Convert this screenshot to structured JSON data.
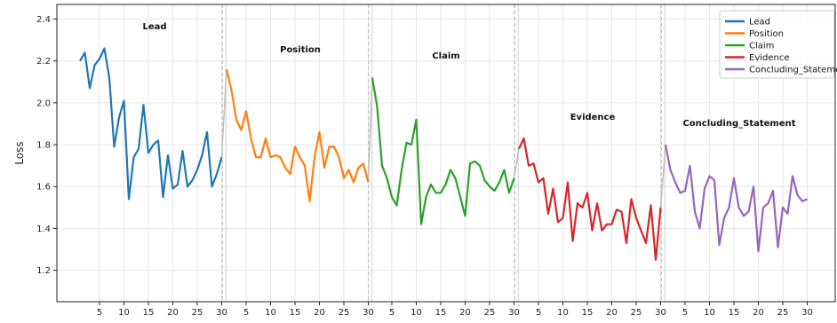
{
  "chart_data": {
    "type": "line",
    "ylabel": "Loss",
    "ylim": [
      1.05,
      2.47
    ],
    "yticks": [
      1.2,
      1.4,
      1.6,
      1.8,
      2.0,
      2.2,
      2.4
    ],
    "segment_xticks": [
      5,
      10,
      15,
      20,
      25,
      30
    ],
    "grid": true,
    "legend_position": "top-right",
    "colors": {
      "Lead": "#1f77b4",
      "Position": "#ff7f0e",
      "Claim": "#2ca02c",
      "Evidence": "#d62728",
      "Concluding_Statement": "#9467bd"
    },
    "segment_labels": [
      "Lead",
      "Position",
      "Claim",
      "Evidence",
      "Concluding_Statement"
    ],
    "series": [
      {
        "name": "Lead",
        "x": [
          1,
          2,
          3,
          4,
          5,
          6,
          7,
          8,
          9,
          10,
          11,
          12,
          13,
          14,
          15,
          16,
          17,
          18,
          19,
          20,
          21,
          22,
          23,
          24,
          25,
          26,
          27,
          28,
          29,
          30
        ],
        "values": [
          2.2,
          2.24,
          2.07,
          2.18,
          2.21,
          2.26,
          2.12,
          1.79,
          1.93,
          2.01,
          1.54,
          1.74,
          1.78,
          1.99,
          1.76,
          1.8,
          1.82,
          1.55,
          1.75,
          1.59,
          1.61,
          1.77,
          1.6,
          1.63,
          1.68,
          1.75,
          1.86,
          1.6,
          1.66,
          1.74
        ]
      },
      {
        "name": "Position",
        "x": [
          1,
          2,
          3,
          4,
          5,
          6,
          7,
          8,
          9,
          10,
          11,
          12,
          13,
          14,
          15,
          16,
          17,
          18,
          19,
          20,
          21,
          22,
          23,
          24,
          25,
          26,
          27,
          28,
          29,
          30
        ],
        "values": [
          2.16,
          2.06,
          1.92,
          1.87,
          1.96,
          1.83,
          1.74,
          1.74,
          1.83,
          1.74,
          1.75,
          1.74,
          1.69,
          1.66,
          1.79,
          1.74,
          1.7,
          1.53,
          1.74,
          1.86,
          1.69,
          1.79,
          1.79,
          1.74,
          1.64,
          1.68,
          1.62,
          1.69,
          1.71,
          1.62
        ]
      },
      {
        "name": "Claim",
        "x": [
          1,
          2,
          3,
          4,
          5,
          6,
          7,
          8,
          9,
          10,
          11,
          12,
          13,
          14,
          15,
          16,
          17,
          18,
          19,
          20,
          21,
          22,
          23,
          24,
          25,
          26,
          27,
          28,
          29,
          30
        ],
        "values": [
          2.12,
          1.98,
          1.7,
          1.64,
          1.55,
          1.51,
          1.68,
          1.81,
          1.8,
          1.92,
          1.42,
          1.55,
          1.61,
          1.57,
          1.57,
          1.61,
          1.68,
          1.64,
          1.55,
          1.46,
          1.71,
          1.72,
          1.7,
          1.63,
          1.6,
          1.58,
          1.62,
          1.68,
          1.57,
          1.64
        ]
      },
      {
        "name": "Evidence",
        "x": [
          1,
          2,
          3,
          4,
          5,
          6,
          7,
          8,
          9,
          10,
          11,
          12,
          13,
          14,
          15,
          16,
          17,
          18,
          19,
          20,
          21,
          22,
          23,
          24,
          25,
          26,
          27,
          28,
          29,
          30
        ],
        "values": [
          1.78,
          1.83,
          1.7,
          1.71,
          1.62,
          1.64,
          1.47,
          1.59,
          1.43,
          1.45,
          1.62,
          1.34,
          1.52,
          1.5,
          1.57,
          1.39,
          1.52,
          1.39,
          1.42,
          1.42,
          1.49,
          1.48,
          1.33,
          1.54,
          1.45,
          1.39,
          1.33,
          1.51,
          1.25,
          1.5
        ]
      },
      {
        "name": "Concluding_Statement",
        "x": [
          1,
          2,
          3,
          4,
          5,
          6,
          7,
          8,
          9,
          10,
          11,
          12,
          13,
          14,
          15,
          16,
          17,
          18,
          19,
          20,
          21,
          22,
          23,
          24,
          25,
          26,
          27,
          28,
          29,
          30
        ],
        "values": [
          1.8,
          1.68,
          1.62,
          1.57,
          1.58,
          1.7,
          1.48,
          1.4,
          1.59,
          1.65,
          1.63,
          1.32,
          1.45,
          1.5,
          1.64,
          1.5,
          1.46,
          1.48,
          1.6,
          1.29,
          1.5,
          1.52,
          1.58,
          1.31,
          1.5,
          1.47,
          1.65,
          1.56,
          1.53,
          1.54
        ]
      }
    ]
  }
}
